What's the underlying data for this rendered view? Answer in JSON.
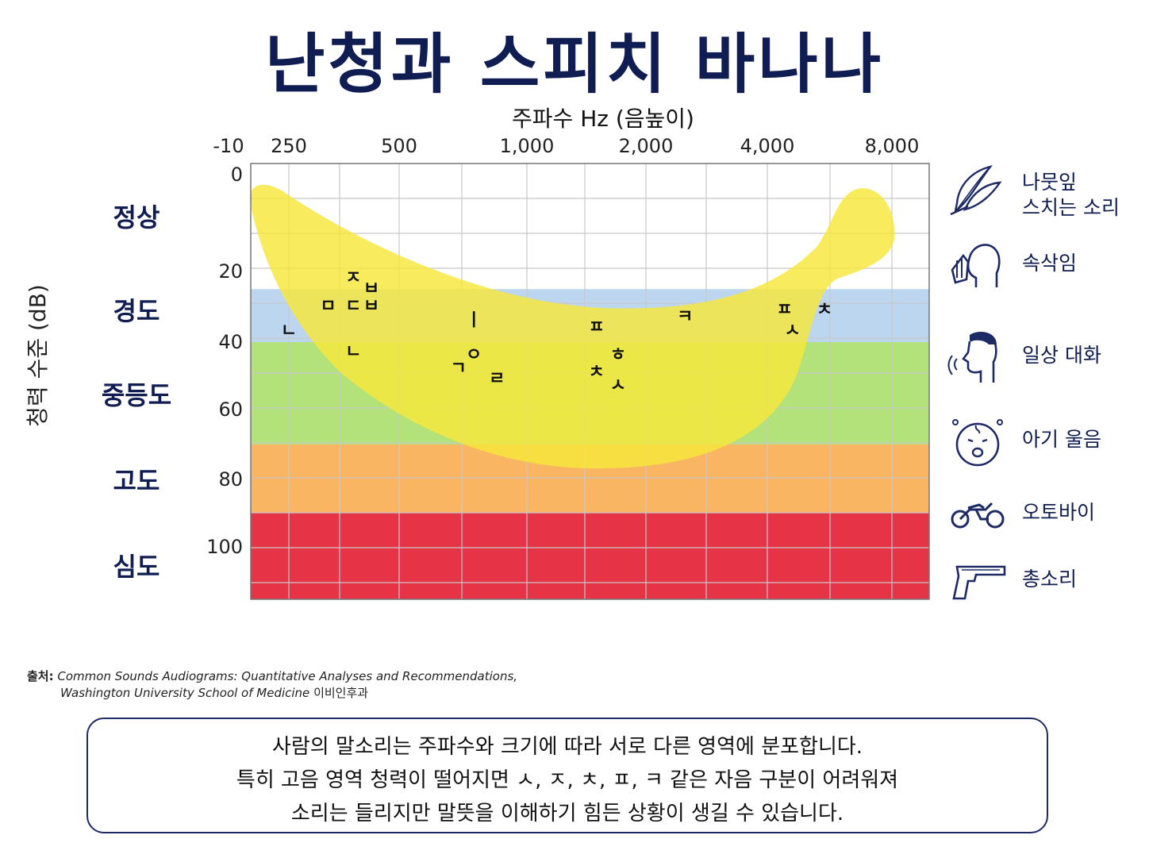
{
  "title": "난청과 스피치 바나나",
  "chart_data": {
    "type": "area",
    "xlabel": "주파수 Hz (음높이)",
    "ylabel": "청력 수준 (dB)",
    "x_ticks": [
      "-10",
      "250",
      "500",
      "1,000",
      "2,000",
      "4,000",
      "8,000"
    ],
    "y_ticks": [
      0,
      20,
      40,
      60,
      80,
      100
    ],
    "ylim": [
      0,
      120
    ],
    "y_inverted": true,
    "grid": true,
    "bands": [
      {
        "grade": "정상",
        "from_db": 0,
        "to_db": 25,
        "color": "#ffffff"
      },
      {
        "grade": "경도",
        "from_db": 25,
        "to_db": 40,
        "color": "#bcd6f0"
      },
      {
        "grade": "중등도",
        "from_db": 40,
        "to_db": 70,
        "color": "#b3e27a"
      },
      {
        "grade": "고도",
        "from_db": 70,
        "to_db": 90,
        "color": "#f9b562"
      },
      {
        "grade": "심도",
        "from_db": 90,
        "to_db": 120,
        "color": "#e63446"
      }
    ],
    "speech_banana_color": "#f7e83a",
    "phonemes": [
      {
        "label": "ㅈ",
        "freq_hz": 375,
        "db": 22
      },
      {
        "label": "ㅂ",
        "freq_hz": 420,
        "db": 25
      },
      {
        "label": "ㅁ",
        "freq_hz": 320,
        "db": 30
      },
      {
        "label": "ㄷ",
        "freq_hz": 375,
        "db": 30
      },
      {
        "label": "ㅂ",
        "freq_hz": 420,
        "db": 30
      },
      {
        "label": "ㄴ",
        "freq_hz": 250,
        "db": 37
      },
      {
        "label": "ㄴ",
        "freq_hz": 375,
        "db": 43
      },
      {
        "label": "ㅣ",
        "freq_hz": 750,
        "db": 34
      },
      {
        "label": "ㅇ",
        "freq_hz": 750,
        "db": 44
      },
      {
        "label": "ㄱ",
        "freq_hz": 690,
        "db": 48
      },
      {
        "label": "ㄹ",
        "freq_hz": 850,
        "db": 51
      },
      {
        "label": "ㅍ",
        "freq_hz": 1500,
        "db": 36
      },
      {
        "label": "ㅎ",
        "freq_hz": 1700,
        "db": 44
      },
      {
        "label": "ㅊ",
        "freq_hz": 1500,
        "db": 49
      },
      {
        "label": "ㅅ",
        "freq_hz": 1700,
        "db": 53
      },
      {
        "label": "ㅋ",
        "freq_hz": 2500,
        "db": 33
      },
      {
        "label": "ㅍ",
        "freq_hz": 4400,
        "db": 31
      },
      {
        "label": "ㅅ",
        "freq_hz": 4600,
        "db": 37
      },
      {
        "label": "ㅊ",
        "freq_hz": 5500,
        "db": 31
      }
    ]
  },
  "grades": [
    "정상",
    "경도",
    "중등도",
    "고도",
    "심도"
  ],
  "legend": [
    {
      "icon": "leaf-icon",
      "label": "나뭇잎\n스치는 소리"
    },
    {
      "icon": "whisper-icon",
      "label": "속삭임"
    },
    {
      "icon": "conversation-icon",
      "label": "일상 대화"
    },
    {
      "icon": "crying-baby-icon",
      "label": "아기 울음"
    },
    {
      "icon": "motorcycle-icon",
      "label": "오토바이"
    },
    {
      "icon": "gun-icon",
      "label": "총소리"
    }
  ],
  "source": {
    "prefix": "출처:",
    "line1": "Common Sounds Audiograms: Quantitative Analyses and Recommendations,",
    "line2_italic": "Washington University School of Medicine",
    "line2_suffix": " 이비인후과"
  },
  "notice": [
    "사람의 말소리는 주파수와 크기에 따라 서로 다른 영역에 분포합니다.",
    "특히 고음 영역 청력이 떨어지면 ㅅ, ㅈ, ㅊ, ㅍ, ㅋ 같은 자음 구분이 어려워져",
    "소리는 들리지만 말뜻을 이해하기 힘든 상황이 생길 수 있습니다."
  ]
}
